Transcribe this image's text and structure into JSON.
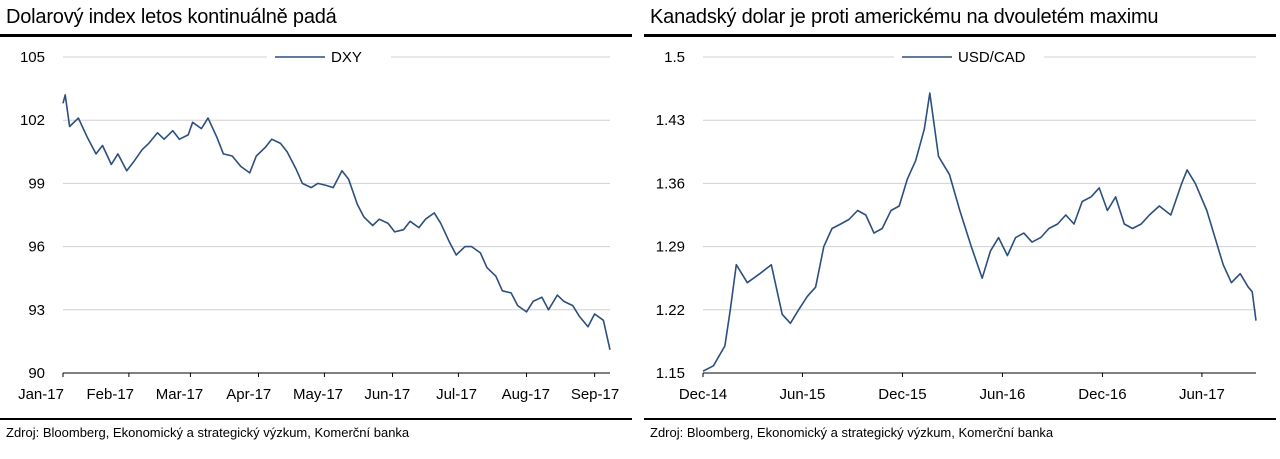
{
  "panels": [
    {
      "title": "Dolarový index letos kontinuálně padá",
      "source": "Zdroj: Bloomberg, Ekonomický a strategický výzkum, Komerční banka"
    },
    {
      "title": "Kanadský dolar je proti americkému na dvouletém maximu",
      "source": "Zdroj: Bloomberg, Ekonomický a strategický výzkum, Komerční banka"
    }
  ],
  "chart_data": [
    {
      "type": "line",
      "title": "Dolarový index letos kontinuálně padá",
      "xlabel": "",
      "ylabel": "",
      "x_tick_labels": [
        "Jan-17",
        "Feb-17",
        "Mar-17",
        "Apr-17",
        "May-17",
        "Jun-17",
        "Jul-17",
        "Aug-17",
        "Sep-17"
      ],
      "y_ticks": [
        "105",
        "102",
        "99",
        "96",
        "93",
        "90"
      ],
      "ylim": [
        90,
        105
      ],
      "grid": "horizontal",
      "legend_placement": "top-center",
      "color": "#2b4f7e",
      "series": [
        {
          "name": "DXY",
          "x": [
            "2017-01-02",
            "2017-01-03",
            "2017-01-05",
            "2017-01-09",
            "2017-01-13",
            "2017-01-17",
            "2017-01-20",
            "2017-01-24",
            "2017-01-27",
            "2017-01-31",
            "2017-02-03",
            "2017-02-07",
            "2017-02-10",
            "2017-02-14",
            "2017-02-17",
            "2017-02-21",
            "2017-02-24",
            "2017-02-28",
            "2017-03-02",
            "2017-03-06",
            "2017-03-09",
            "2017-03-13",
            "2017-03-16",
            "2017-03-20",
            "2017-03-24",
            "2017-03-28",
            "2017-03-31",
            "2017-04-04",
            "2017-04-07",
            "2017-04-11",
            "2017-04-14",
            "2017-04-18",
            "2017-04-21",
            "2017-04-25",
            "2017-04-28",
            "2017-05-02",
            "2017-05-05",
            "2017-05-09",
            "2017-05-12",
            "2017-05-16",
            "2017-05-19",
            "2017-05-23",
            "2017-05-26",
            "2017-05-30",
            "2017-06-02",
            "2017-06-06",
            "2017-06-09",
            "2017-06-13",
            "2017-06-16",
            "2017-06-20",
            "2017-06-23",
            "2017-06-27",
            "2017-06-30",
            "2017-07-04",
            "2017-07-07",
            "2017-07-11",
            "2017-07-14",
            "2017-07-18",
            "2017-07-21",
            "2017-07-25",
            "2017-07-28",
            "2017-08-01",
            "2017-08-04",
            "2017-08-08",
            "2017-08-11",
            "2017-08-15",
            "2017-08-18",
            "2017-08-22",
            "2017-08-25",
            "2017-08-29",
            "2017-09-01",
            "2017-09-05",
            "2017-09-08"
          ],
          "values": [
            102.8,
            103.2,
            101.7,
            102.1,
            101.2,
            100.4,
            100.8,
            99.9,
            100.4,
            99.6,
            100.0,
            100.6,
            100.9,
            101.4,
            101.1,
            101.5,
            101.1,
            101.3,
            101.9,
            101.6,
            102.1,
            101.2,
            100.4,
            100.3,
            99.8,
            99.5,
            100.3,
            100.7,
            101.1,
            100.9,
            100.5,
            99.7,
            99.0,
            98.8,
            99.0,
            98.9,
            98.8,
            99.6,
            99.2,
            98.0,
            97.4,
            97.0,
            97.3,
            97.1,
            96.7,
            96.8,
            97.2,
            96.9,
            97.3,
            97.6,
            97.1,
            96.2,
            95.6,
            96.0,
            96.0,
            95.7,
            95.0,
            94.6,
            93.9,
            93.8,
            93.2,
            92.9,
            93.4,
            93.6,
            93.0,
            93.7,
            93.4,
            93.2,
            92.7,
            92.2,
            92.8,
            92.5,
            91.1
          ]
        }
      ]
    },
    {
      "type": "line",
      "title": "Kanadský dolar je proti americkému na dvouletém maximu",
      "xlabel": "",
      "ylabel": "",
      "x_tick_labels": [
        "Dec-14",
        "Jun-15",
        "Dec-15",
        "Jun-16",
        "Dec-16",
        "Jun-17"
      ],
      "y_ticks": [
        "1.5",
        "1.43",
        "1.36",
        "1.29",
        "1.22",
        "1.15"
      ],
      "ylim": [
        1.15,
        1.5
      ],
      "grid": "horizontal",
      "legend_placement": "top-center",
      "color": "#2b4f7e",
      "series": [
        {
          "name": "USD/CAD",
          "x": [
            "2014-12-01",
            "2014-12-20",
            "2015-01-10",
            "2015-01-20",
            "2015-01-31",
            "2015-02-20",
            "2015-03-15",
            "2015-04-05",
            "2015-04-25",
            "2015-05-10",
            "2015-05-25",
            "2015-06-10",
            "2015-06-25",
            "2015-07-10",
            "2015-07-25",
            "2015-08-10",
            "2015-08-25",
            "2015-09-10",
            "2015-09-25",
            "2015-10-10",
            "2015-10-25",
            "2015-11-10",
            "2015-11-25",
            "2015-12-10",
            "2015-12-25",
            "2016-01-10",
            "2016-01-20",
            "2016-02-05",
            "2016-02-25",
            "2016-03-15",
            "2016-04-05",
            "2016-04-25",
            "2016-05-10",
            "2016-05-25",
            "2016-06-10",
            "2016-06-25",
            "2016-07-10",
            "2016-07-25",
            "2016-08-10",
            "2016-08-25",
            "2016-09-10",
            "2016-09-25",
            "2016-10-10",
            "2016-10-25",
            "2016-11-10",
            "2016-11-25",
            "2016-12-10",
            "2016-12-25",
            "2017-01-10",
            "2017-01-25",
            "2017-02-10",
            "2017-02-25",
            "2017-03-15",
            "2017-04-05",
            "2017-04-25",
            "2017-05-05",
            "2017-05-20",
            "2017-06-10",
            "2017-06-25",
            "2017-07-10",
            "2017-07-25",
            "2017-08-10",
            "2017-08-25",
            "2017-09-01",
            "2017-09-08"
          ],
          "values": [
            1.152,
            1.158,
            1.18,
            1.22,
            1.27,
            1.25,
            1.26,
            1.27,
            1.215,
            1.205,
            1.22,
            1.235,
            1.245,
            1.29,
            1.31,
            1.315,
            1.32,
            1.33,
            1.325,
            1.305,
            1.31,
            1.33,
            1.335,
            1.365,
            1.385,
            1.42,
            1.46,
            1.39,
            1.37,
            1.33,
            1.29,
            1.255,
            1.285,
            1.3,
            1.28,
            1.3,
            1.305,
            1.295,
            1.3,
            1.31,
            1.315,
            1.325,
            1.315,
            1.34,
            1.345,
            1.355,
            1.33,
            1.345,
            1.315,
            1.31,
            1.315,
            1.325,
            1.335,
            1.325,
            1.36,
            1.375,
            1.36,
            1.33,
            1.3,
            1.27,
            1.25,
            1.26,
            1.245,
            1.24,
            1.208
          ]
        }
      ]
    }
  ]
}
